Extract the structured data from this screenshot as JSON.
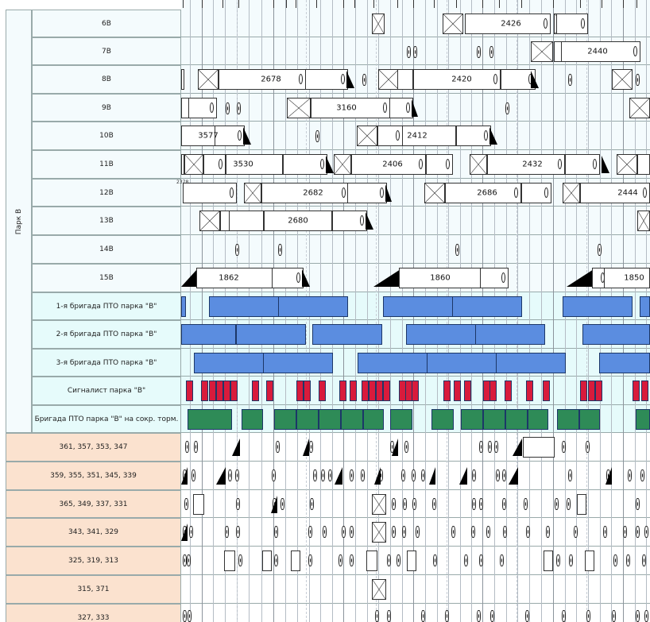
{
  "park": {
    "label": "Парк В"
  },
  "tracks": [
    {
      "label": "6В",
      "train": "2426"
    },
    {
      "label": "7В",
      "train": "2440"
    },
    {
      "label": "8В",
      "trains": [
        "2678",
        "2420"
      ]
    },
    {
      "label": "9В",
      "train": "3160"
    },
    {
      "label": "10В",
      "trains": [
        "3577",
        "2412"
      ]
    },
    {
      "label": "11В",
      "trains": [
        "3530",
        "2406",
        "2432"
      ]
    },
    {
      "label": "12В",
      "trains": [
        "2682",
        "2686",
        "2444"
      ],
      "corner_note": "2378"
    },
    {
      "label": "13В",
      "train": "2680"
    },
    {
      "label": "14В"
    },
    {
      "label": "15В",
      "trains": [
        "1862",
        "1860",
        "1850"
      ]
    }
  ],
  "brigades": [
    {
      "label": "1-я бригада ПТО парка \"В\""
    },
    {
      "label": "2-я бригада ПТО парка \"В\""
    },
    {
      "label": "3-я бригада ПТО парка \"В\""
    },
    {
      "label": "Сигналист парка \"В\""
    },
    {
      "label": "Бригада ПТО парка \"В\" на сокр. торм."
    }
  ],
  "lower_tracks": [
    {
      "label": "361, 357, 353, 347"
    },
    {
      "label": "359, 355, 351, 345, 339"
    },
    {
      "label": "365, 349, 337, 331"
    },
    {
      "label": "343, 341, 329"
    },
    {
      "label": "325, 319, 313"
    },
    {
      "label": "315, 371"
    },
    {
      "label": "327, 333"
    }
  ],
  "colors": {
    "pto_bar": "#5b8de0",
    "signalman_bar": "#d81b3c",
    "short_brake_bar": "#2e8b57",
    "upper_lane_bg": "#f4fbfd",
    "brigade_bg": "#e6fbfb",
    "lower_label_bg": "#fbe2cf"
  }
}
